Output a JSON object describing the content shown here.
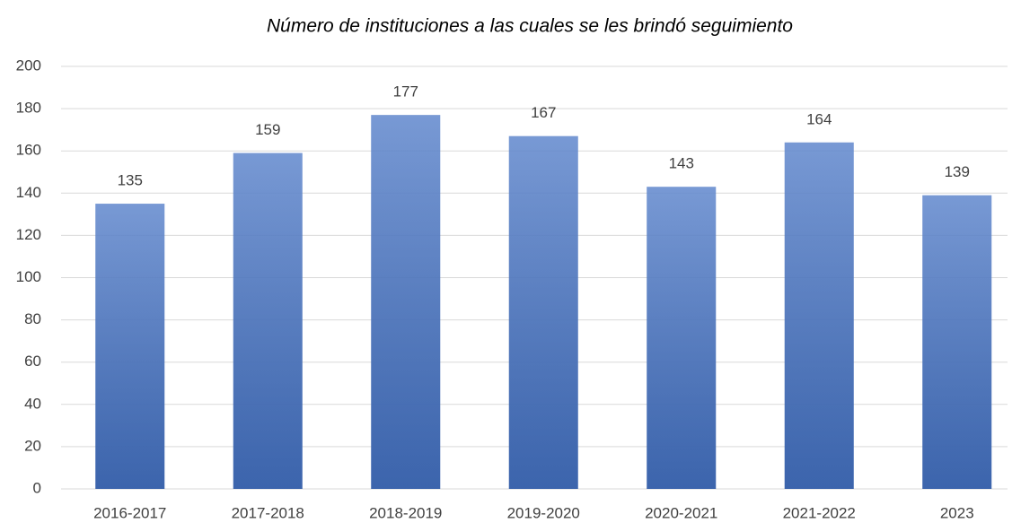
{
  "chart_data": {
    "type": "bar",
    "title": "Número de instituciones a las cuales se les brindó seguimiento",
    "categories": [
      "2016-2017",
      "2017-2018",
      "2018-2019",
      "2019-2020",
      "2020-2021",
      "2021-2022",
      "2023"
    ],
    "values": [
      135,
      159,
      177,
      167,
      143,
      164,
      139
    ],
    "color": "#4472c4",
    "ylim": [
      0,
      200
    ],
    "yticks": [
      0,
      20,
      40,
      60,
      80,
      100,
      120,
      140,
      160,
      180,
      200
    ],
    "grid": true
  }
}
